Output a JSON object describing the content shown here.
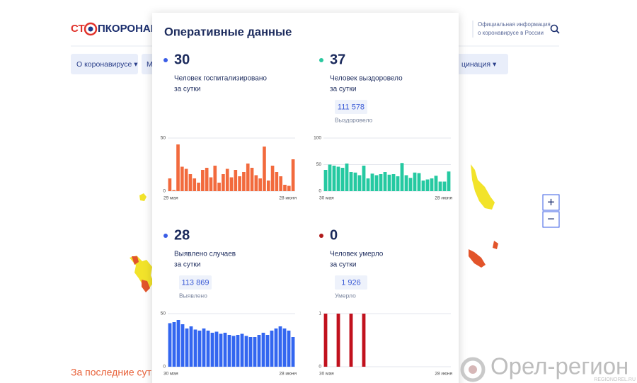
{
  "header": {
    "logo": [
      "СТ",
      "ПКОРОНАВИ"
    ],
    "info": [
      "Официальная информация",
      "о коронавирусе в России"
    ]
  },
  "nav": {
    "items": [
      "О коронавирусе ▾",
      "М",
      "цинация ▾"
    ]
  },
  "map": {
    "zoom": [
      "+",
      "−"
    ]
  },
  "section_title": "За последние сутки",
  "watermark": {
    "name": "Орел-регион",
    "site": "REGIONOREL.RU"
  },
  "popup": {
    "title": "Оперативные данные",
    "panels": [
      {
        "value": 30,
        "label": [
          "Человек госпитализировано",
          "за сутки"
        ],
        "dot_color": "#3a5de6",
        "chart": {
          "type": "bar",
          "color": "#f26a3d",
          "ylim": [
            0,
            50
          ],
          "yticks": [
            0,
            50
          ],
          "x_labels": [
            "29 мая",
            "28 июня"
          ],
          "values": [
            12,
            1,
            44,
            23,
            21,
            16,
            12,
            8,
            20,
            22,
            13,
            24,
            8,
            16,
            21,
            13,
            20,
            14,
            18,
            26,
            22,
            15,
            12,
            42,
            10,
            24,
            18,
            14,
            6,
            5,
            30
          ]
        }
      },
      {
        "value": 37,
        "label": [
          "Человек выздоровело",
          "за сутки"
        ],
        "total": "111 578",
        "total_label": "Выздоровело",
        "dot_color": "#2bc8a0",
        "chart": {
          "type": "bar",
          "color": "#25c9a1",
          "ylim": [
            0,
            100
          ],
          "yticks": [
            0,
            50,
            100
          ],
          "x_labels": [
            "30 мая",
            "28 июня"
          ],
          "values": [
            40,
            50,
            48,
            46,
            44,
            52,
            36,
            35,
            30,
            48,
            24,
            33,
            30,
            32,
            36,
            31,
            32,
            28,
            53,
            30,
            25,
            35,
            34,
            20,
            22,
            24,
            29,
            18,
            18,
            37
          ]
        }
      },
      {
        "value": 28,
        "label": [
          "Выявлено случаев",
          "за сутки"
        ],
        "total": "113 869",
        "total_label": "Выявлено",
        "dot_color": "#3a5de6",
        "chart": {
          "type": "bar",
          "color": "#3366f0",
          "ylim": [
            0,
            50
          ],
          "yticks": [
            0,
            50
          ],
          "x_labels": [
            "30 мая",
            "28 июня"
          ],
          "values": [
            41,
            42,
            44,
            40,
            36,
            38,
            35,
            34,
            36,
            34,
            32,
            33,
            31,
            32,
            30,
            29,
            30,
            31,
            29,
            28,
            28,
            30,
            32,
            30,
            34,
            36,
            38,
            36,
            34,
            28
          ]
        }
      },
      {
        "value": 0,
        "label": [
          "Человек умерло",
          "за сутки"
        ],
        "total": "1 926",
        "total_label": "Умерло",
        "dot_color": "#b01a1a",
        "chart": {
          "type": "bar",
          "color": "#c1111d",
          "ylim": [
            0,
            1
          ],
          "yticks": [
            0,
            1
          ],
          "x_labels": [
            "30 мая",
            "28 июня"
          ],
          "values": [
            1,
            0,
            0,
            1,
            0,
            0,
            1,
            0,
            0,
            1,
            0,
            0,
            0,
            0,
            0,
            0,
            0,
            0,
            0,
            0,
            0,
            0,
            0,
            0,
            0,
            0,
            0,
            0,
            0,
            0
          ]
        }
      }
    ]
  }
}
